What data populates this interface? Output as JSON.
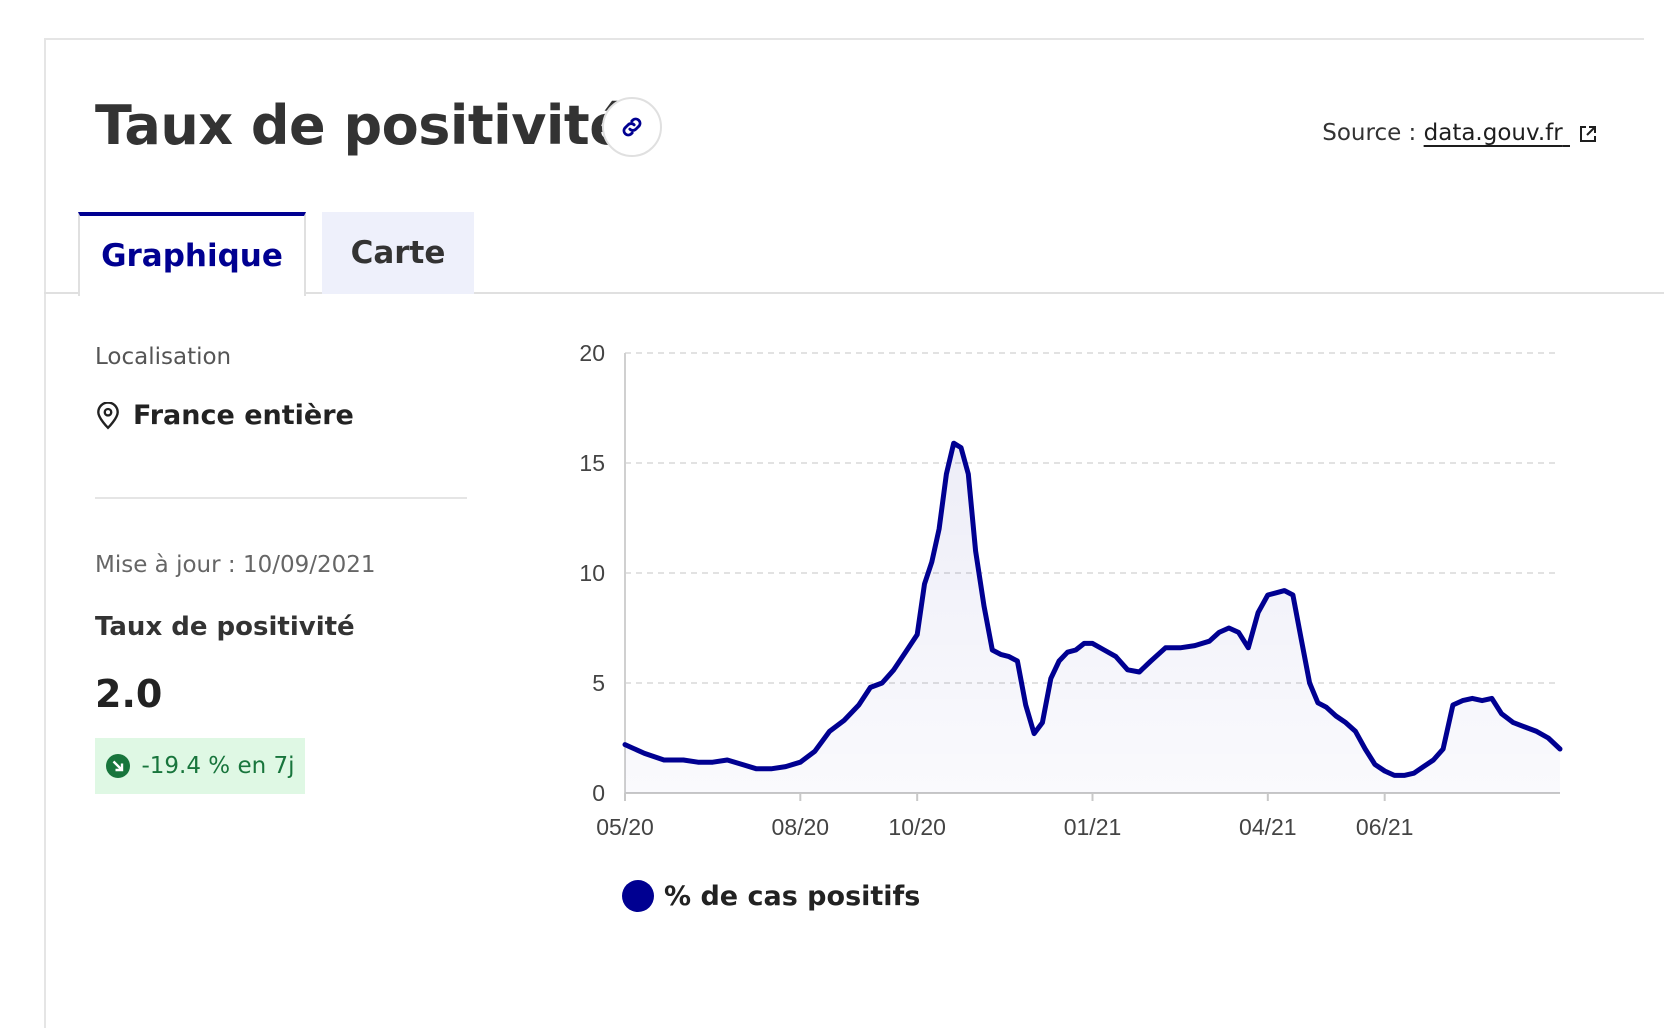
{
  "header": {
    "title": "Taux de positivité",
    "source_prefix": "Source :",
    "source_link": "data.gouv.fr"
  },
  "tabs": [
    {
      "label": "Graphique",
      "active": true
    },
    {
      "label": "Carte",
      "active": false
    }
  ],
  "sidebar": {
    "location_label": "Localisation",
    "location_value": "France entière",
    "update_text": "Mise à jour : 10/09/2021",
    "metric_label": "Taux de positivité",
    "metric_value": "2.0",
    "trend_text": "-19.4 % en 7j"
  },
  "colors": {
    "accent": "#000091",
    "trend_bg": "#dff8e4",
    "trend_fg": "#18753c"
  },
  "icons": [
    "link-icon",
    "external-link-icon",
    "map-pin-icon",
    "arrow-down-right-icon"
  ],
  "chart_data": {
    "type": "area",
    "y_ticks": [
      0,
      5,
      10,
      15,
      20
    ],
    "x_tick_labels": [
      "05/20",
      "08/20",
      "10/20",
      "01/21",
      "04/21",
      "06/21"
    ],
    "x_tick_dates": [
      "2020-05",
      "2020-08",
      "2020-10",
      "2021-01",
      "2021-04",
      "2021-06"
    ],
    "ylim": [
      0,
      20
    ],
    "xlim": [
      "2020-05",
      "2021-09"
    ],
    "grid": true,
    "legend_position": "bottom-left",
    "series": [
      {
        "name": "% de cas positifs",
        "color": "#000091",
        "x": [
          "2020-05",
          "2020-05",
          "2020-05",
          "2020-06",
          "2020-06",
          "2020-06",
          "2020-06",
          "2020-07",
          "2020-07",
          "2020-07",
          "2020-07",
          "2020-08",
          "2020-08",
          "2020-08",
          "2020-08",
          "2020-09",
          "2020-09",
          "2020-09",
          "2020-09",
          "2020-09",
          "2020-10",
          "2020-10",
          "2020-10",
          "2020-10",
          "2020-10",
          "2020-10",
          "2020-10",
          "2020-10",
          "2020-11",
          "2020-11",
          "2020-11",
          "2020-11",
          "2020-11",
          "2020-11",
          "2020-11",
          "2020-12",
          "2020-12",
          "2020-12",
          "2020-12",
          "2020-12",
          "2020-12",
          "2020-12",
          "2021-01",
          "2021-01",
          "2021-01",
          "2021-01",
          "2021-01",
          "2021-02",
          "2021-02",
          "2021-02",
          "2021-02",
          "2021-03",
          "2021-03",
          "2021-03",
          "2021-03",
          "2021-03",
          "2021-03",
          "2021-04",
          "2021-04",
          "2021-04",
          "2021-04",
          "2021-04",
          "2021-04",
          "2021-04",
          "2021-05",
          "2021-05",
          "2021-05",
          "2021-05",
          "2021-05",
          "2021-05",
          "2021-06",
          "2021-06",
          "2021-06",
          "2021-06",
          "2021-06",
          "2021-06",
          "2021-07",
          "2021-07",
          "2021-07",
          "2021-07",
          "2021-07",
          "2021-07",
          "2021-08",
          "2021-08",
          "2021-08",
          "2021-08",
          "2021-08",
          "2021-09"
        ],
        "values": [
          2.2,
          1.8,
          1.5,
          1.5,
          1.4,
          1.4,
          1.5,
          1.3,
          1.1,
          1.1,
          1.2,
          1.4,
          1.9,
          2.8,
          3.3,
          4.0,
          4.8,
          5.0,
          5.6,
          6.4,
          7.2,
          9.5,
          10.5,
          12.0,
          14.5,
          15.9,
          15.7,
          14.5,
          11.0,
          8.5,
          6.5,
          6.3,
          6.2,
          6.0,
          4.0,
          2.7,
          3.2,
          5.2,
          6.0,
          6.4,
          6.5,
          6.8,
          6.8,
          6.5,
          6.2,
          5.6,
          5.5,
          6.0,
          6.6,
          6.6,
          6.7,
          6.9,
          7.3,
          7.5,
          7.3,
          6.6,
          8.2,
          9.0,
          9.1,
          9.2,
          9.0,
          7.0,
          5.0,
          4.1,
          3.9,
          3.5,
          3.2,
          2.8,
          2.0,
          1.3,
          1.0,
          0.8,
          0.8,
          0.9,
          1.2,
          1.5,
          2.0,
          4.0,
          4.2,
          4.3,
          4.2,
          4.3,
          3.6,
          3.2,
          3.0,
          2.8,
          2.5,
          2.0
        ]
      }
    ]
  }
}
